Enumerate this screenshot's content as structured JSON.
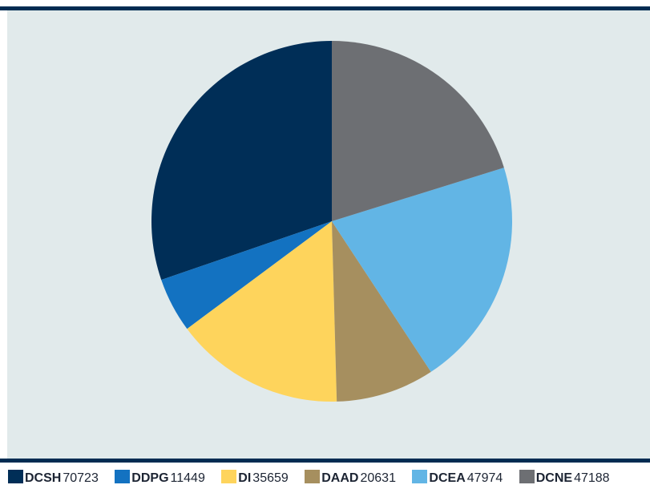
{
  "chart_data": {
    "type": "pie",
    "title": "",
    "slices": [
      {
        "label": "DCSH",
        "value": 70723,
        "color": "#002e57"
      },
      {
        "label": "DDPG",
        "value": 11449,
        "color": "#1372c1"
      },
      {
        "label": "DI",
        "value": 35659,
        "color": "#fed45c"
      },
      {
        "label": "DAAD",
        "value": 20631,
        "color": "#a68f5f"
      },
      {
        "label": "DCEA",
        "value": 47974,
        "color": "#62b5e5"
      },
      {
        "label": "DCNE",
        "value": 47188,
        "color": "#6d6f73"
      }
    ],
    "legend_position": "bottom",
    "colors": {
      "panel_background": "#e1eaeb",
      "rule": "#002c52",
      "legend_text": "#1c2433"
    }
  }
}
